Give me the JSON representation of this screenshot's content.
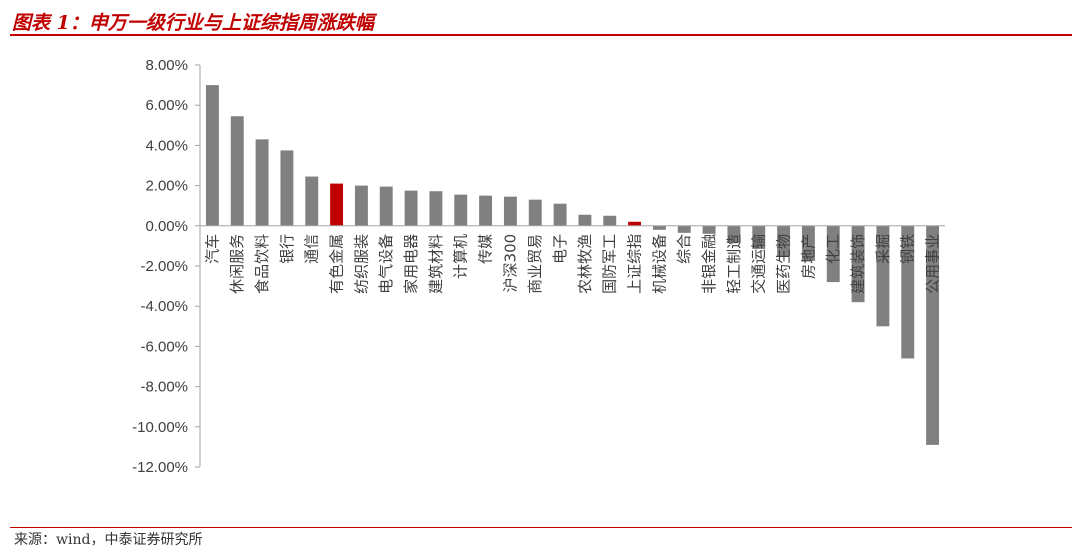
{
  "header": {
    "title": "图表 1：申万一级行业与上证综指周涨跌幅"
  },
  "footer": {
    "source": "来源：wind，中泰证券研究所"
  },
  "chart_data": {
    "type": "bar",
    "title": "",
    "xlabel": "",
    "ylabel": "",
    "ylim": [
      -12,
      8
    ],
    "yticks": [
      "8.00%",
      "6.00%",
      "4.00%",
      "2.00%",
      "0.00%",
      "-2.00%",
      "-4.00%",
      "-6.00%",
      "-8.00%",
      "-10.00%",
      "-12.00%"
    ],
    "grid": false,
    "categories": [
      "汽车",
      "休闲服务",
      "食品饮料",
      "银行",
      "通信",
      "有色金属",
      "纺织服装",
      "电气设备",
      "家用电器",
      "建筑材料",
      "计算机",
      "传媒",
      "沪深300",
      "商业贸易",
      "电子",
      "农林牧渔",
      "国防军工",
      "上证综指",
      "机械设备",
      "综合",
      "非银金融",
      "轻工制造",
      "交通运输",
      "医药生物",
      "房地产",
      "化工",
      "建筑装饰",
      "采掘",
      "钢铁",
      "公用事业"
    ],
    "values": [
      7.0,
      5.45,
      4.3,
      3.75,
      2.45,
      2.1,
      2.0,
      1.95,
      1.75,
      1.72,
      1.55,
      1.5,
      1.45,
      1.3,
      1.1,
      0.55,
      0.5,
      0.2,
      -0.2,
      -0.35,
      -0.4,
      -0.85,
      -1.15,
      -1.5,
      -1.75,
      -2.8,
      -3.8,
      -5.0,
      -6.6,
      -10.9
    ],
    "colors": {
      "default": "#808080",
      "highlight": "#c00000"
    },
    "highlight": [
      "有色金属",
      "上证综指"
    ]
  }
}
